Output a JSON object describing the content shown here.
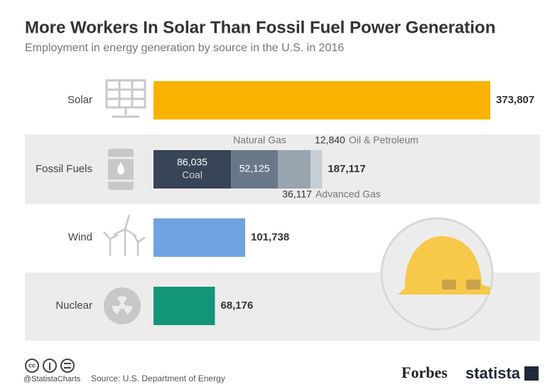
{
  "chart_data": {
    "type": "bar",
    "orientation": "horizontal",
    "title": "More Workers In Solar Than Fossil Fuel Power Generation",
    "subtitle": "Employment in energy generation by source in the U.S. in 2016",
    "categories": [
      "Solar",
      "Fossil Fuels",
      "Wind",
      "Nuclear"
    ],
    "values": [
      373807,
      187117,
      101738,
      68176
    ],
    "value_labels": [
      "373,807",
      "187,117",
      "101,738",
      "68,176"
    ],
    "colors": [
      "#f8b300",
      "#c6ced4",
      "#6fa3e2",
      "#13957a"
    ],
    "breakdown": {
      "category": "Fossil Fuels",
      "segments": [
        {
          "name": "Coal",
          "value": 86035,
          "value_label": "86,035",
          "color": "#374556"
        },
        {
          "name": "Natural Gas",
          "value": 52125,
          "value_label": "52,125",
          "color": "#687888"
        },
        {
          "name": "Advanced Gas",
          "value": 36117,
          "value_label": "36,117",
          "color": "#98a4ae"
        },
        {
          "name": "Oil & Petroleum",
          "value": 12840,
          "value_label": "12,840",
          "color": "#c6ced4"
        }
      ]
    },
    "credit": "@StatistaCharts",
    "source": "Source: U.S. Department of Energy"
  },
  "brands": [
    "Forbes",
    "statista"
  ]
}
